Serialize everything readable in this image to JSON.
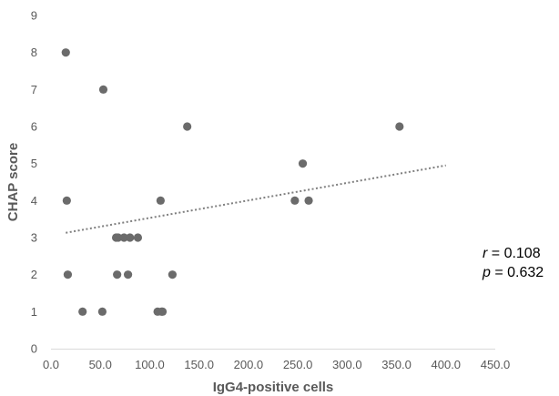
{
  "chart_data": {
    "type": "scatter",
    "title": "",
    "xlabel": "IgG4-positive cells",
    "ylabel": "CHAP score",
    "xlim": [
      0,
      450
    ],
    "ylim": [
      0,
      9
    ],
    "x_ticks": [
      "0.0",
      "50.0",
      "100.0",
      "150.0",
      "200.0",
      "250.0",
      "300.0",
      "350.0",
      "400.0",
      "450.0"
    ],
    "y_ticks": [
      "0",
      "1",
      "2",
      "3",
      "4",
      "5",
      "6",
      "7",
      "8",
      "9"
    ],
    "grid": false,
    "legend": false,
    "point_color": "#6b6b6b",
    "trendline_color": "#7f7f7f",
    "series": [
      {
        "x": [
          15,
          16,
          17,
          32,
          52,
          53,
          66,
          67,
          68,
          74,
          78,
          80,
          88,
          108,
          111,
          112,
          113,
          123,
          138,
          247,
          255,
          261,
          353
        ],
        "y": [
          8,
          4,
          2,
          1,
          1,
          7,
          3,
          2,
          3,
          3,
          2,
          3,
          3,
          1,
          4,
          1,
          1,
          2,
          6,
          4,
          5,
          4,
          6
        ]
      }
    ],
    "trendline": {
      "style": "dotted",
      "x": [
        15,
        400
      ],
      "y": [
        3.13,
        4.95
      ]
    },
    "annotations": {
      "r_symbol": "r",
      "r_text": " = 0.108",
      "p_symbol": "p",
      "p_text": " = 0.632"
    }
  }
}
